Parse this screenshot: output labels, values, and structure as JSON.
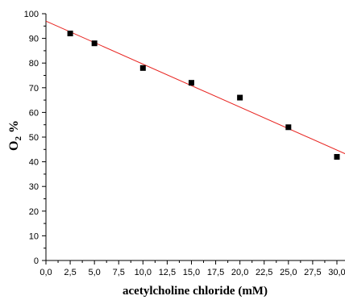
{
  "chart_data": {
    "type": "scatter",
    "xlabel": "acetylcholine chloride (mM)",
    "ylabel": {
      "prefix": "O",
      "subscript": "2",
      "suffix": " %"
    },
    "xlim": [
      0,
      31
    ],
    "ylim": [
      0,
      100
    ],
    "x_ticks": [
      0,
      2.5,
      5,
      7.5,
      10,
      12.5,
      15,
      17.5,
      20,
      22.5,
      25,
      27.5,
      30
    ],
    "x_tick_labels": [
      "0,0",
      "2,5",
      "5,0",
      "7,5",
      "10,0",
      "12,5",
      "15,0",
      "17,5",
      "20,0",
      "22,5",
      "25,0",
      "27,5",
      "30,0"
    ],
    "y_ticks": [
      0,
      10,
      20,
      30,
      40,
      50,
      60,
      70,
      80,
      90,
      100
    ],
    "y_tick_labels": [
      "0",
      "10",
      "20",
      "30",
      "40",
      "50",
      "60",
      "70",
      "80",
      "90",
      "100"
    ],
    "grid": false,
    "points": {
      "x": [
        2.5,
        5,
        10,
        15,
        20,
        25,
        30
      ],
      "y": [
        92,
        88,
        78,
        72,
        66,
        54,
        42
      ],
      "marker": "square",
      "color": "#000000"
    },
    "fit_line": {
      "x": [
        0,
        31
      ],
      "y": [
        97,
        43
      ],
      "color": "#e8231f"
    }
  }
}
